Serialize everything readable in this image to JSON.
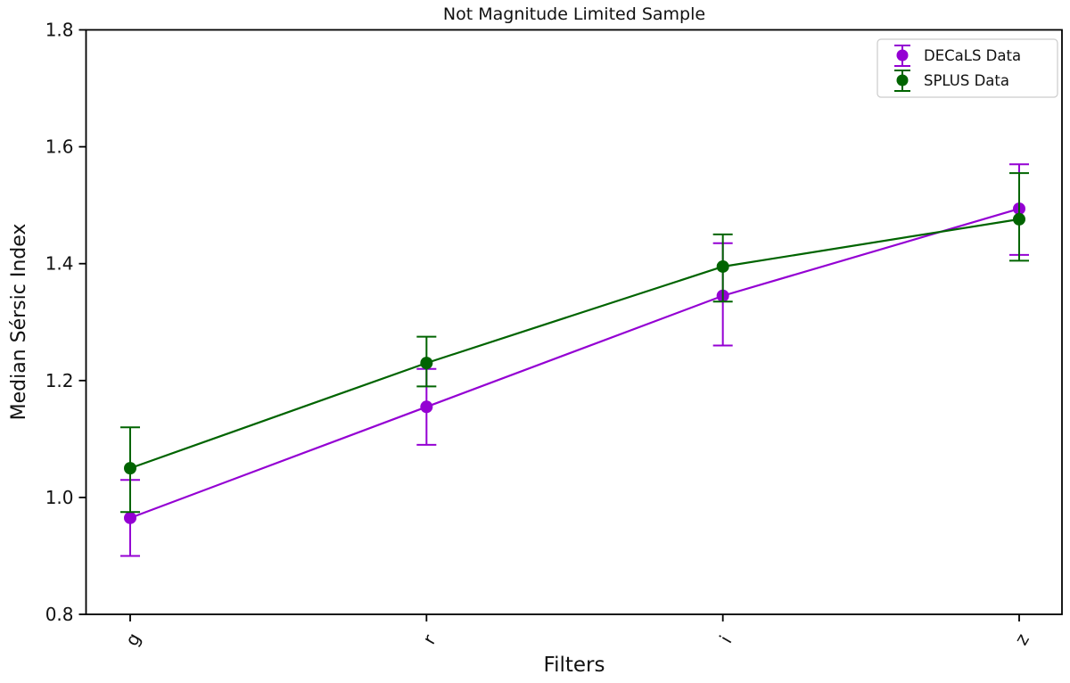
{
  "chart_data": {
    "type": "line",
    "title": "Not Magnitude Limited Sample",
    "xlabel": "Filters",
    "ylabel": "Median Sérsic Index",
    "categories": [
      "g",
      "r",
      "i",
      "z"
    ],
    "xtick_rotation_deg": 60,
    "ylim": [
      0.8,
      1.8
    ],
    "yticks": [
      "0.8",
      "1.0",
      "1.2",
      "1.4",
      "1.6",
      "1.8"
    ],
    "grid": false,
    "legend_position": "upper right",
    "marker": "circle-with-errorbar",
    "series": [
      {
        "name": "DECaLS Data",
        "color": "#9400D3",
        "values": [
          0.965,
          1.155,
          1.345,
          1.494
        ],
        "err_upper": [
          1.03,
          1.22,
          1.435,
          1.57
        ],
        "err_lower": [
          0.9,
          1.09,
          1.26,
          1.415
        ]
      },
      {
        "name": "SPLUS Data",
        "color": "#006400",
        "values": [
          1.05,
          1.23,
          1.395,
          1.476
        ],
        "err_upper": [
          1.12,
          1.275,
          1.45,
          1.555
        ],
        "err_lower": [
          0.975,
          1.19,
          1.335,
          1.405
        ]
      }
    ]
  }
}
